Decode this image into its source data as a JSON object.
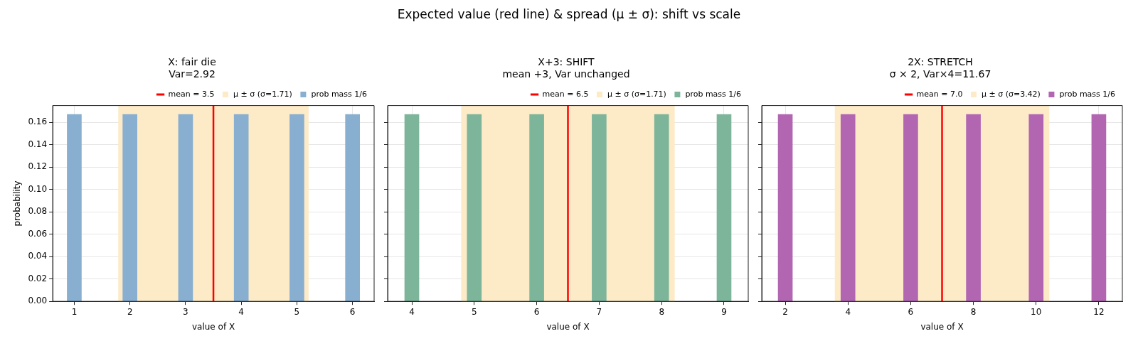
{
  "chart_data": [
    {
      "type": "bar",
      "title": "X: fair die",
      "subtitle": "Var=2.92",
      "xlabel": "value of X",
      "ylabel": "probability",
      "annotations": [
        "Expected value (red line) & spread (μ ± σ): shift vs scale"
      ],
      "x": [
        1,
        2,
        3,
        4,
        5,
        6
      ],
      "series": [
        {
          "name": "prob mass 1/6",
          "color": "#88aed0",
          "values": [
            0.167,
            0.167,
            0.167,
            0.167,
            0.167,
            0.167
          ]
        }
      ],
      "xlim": [
        0.6125,
        6.3875
      ],
      "xticks": [
        1,
        2,
        3,
        4,
        5,
        6
      ],
      "ylim": [
        0,
        0.175
      ],
      "yticks": [
        {
          "value": 0,
          "label": "0.00"
        },
        {
          "value": 0.02,
          "label": "0.02"
        },
        {
          "value": 0.04,
          "label": "0.04"
        },
        {
          "value": 0.06,
          "label": "0.06"
        },
        {
          "value": 0.08,
          "label": "0.08"
        },
        {
          "value": 0.1,
          "label": "0.10"
        },
        {
          "value": 0.12,
          "label": "0.12"
        },
        {
          "value": 0.14,
          "label": "0.14"
        },
        {
          "value": 0.16,
          "label": "0.16"
        }
      ],
      "ref_lines": [
        {
          "axis": "x",
          "value": 3.5,
          "label": "mean = 3.5",
          "color": "#ff0000"
        }
      ],
      "bands": [
        {
          "axis": "x",
          "from": 1.79,
          "to": 5.21,
          "label": "μ ± σ (σ=1.71)",
          "color": "#fdebc8"
        }
      ],
      "grid": true,
      "legend": "top right"
    },
    {
      "type": "bar",
      "title": "X+3: SHIFT",
      "subtitle": "mean +3, Var unchanged",
      "xlabel": "value of X",
      "x": [
        4,
        5,
        6,
        7,
        8,
        9
      ],
      "series": [
        {
          "name": "prob mass 1/6",
          "color": "#7db59b",
          "values": [
            0.167,
            0.167,
            0.167,
            0.167,
            0.167,
            0.167
          ]
        }
      ],
      "xlim": [
        3.6125,
        9.3875
      ],
      "xticks": [
        4,
        5,
        6,
        7,
        8,
        9
      ],
      "ylim": [
        0,
        0.175
      ],
      "yticks": [
        0,
        0.02,
        0.04,
        0.06,
        0.08,
        0.1,
        0.12,
        0.14,
        0.16
      ],
      "tick_labels": "x",
      "ref_lines": [
        {
          "axis": "x",
          "value": 6.5,
          "label": "mean = 6.5",
          "color": "#ff0000"
        }
      ],
      "bands": [
        {
          "axis": "x",
          "from": 4.79,
          "to": 8.21,
          "label": "μ ± σ (σ=1.71)",
          "color": "#fdebc8"
        }
      ],
      "grid": true,
      "legend": "top right"
    },
    {
      "type": "bar",
      "title": "2X: STRETCH",
      "subtitle": "σ × 2, Var×4=11.67",
      "xlabel": "value of X",
      "x": [
        2,
        4,
        6,
        8,
        10,
        12
      ],
      "series": [
        {
          "name": "prob mass 1/6",
          "color": "#b266b2",
          "values": [
            0.167,
            0.167,
            0.167,
            0.167,
            0.167,
            0.167
          ]
        }
      ],
      "xlim": [
        1.25,
        12.75
      ],
      "xticks": [
        2,
        4,
        6,
        8,
        10,
        12
      ],
      "ylim": [
        0,
        0.175
      ],
      "yticks": [
        0,
        0.02,
        0.04,
        0.06,
        0.08,
        0.1,
        0.12,
        0.14,
        0.16
      ],
      "tick_labels": "x",
      "ref_lines": [
        {
          "axis": "x",
          "value": 7,
          "label": "mean = 7.0",
          "color": "#ff0000"
        }
      ],
      "bands": [
        {
          "axis": "x",
          "from": 3.58,
          "to": 10.42,
          "label": "μ ± σ (σ=3.42)",
          "color": "#fdebc8"
        }
      ],
      "grid": true,
      "legend": "top right"
    }
  ]
}
